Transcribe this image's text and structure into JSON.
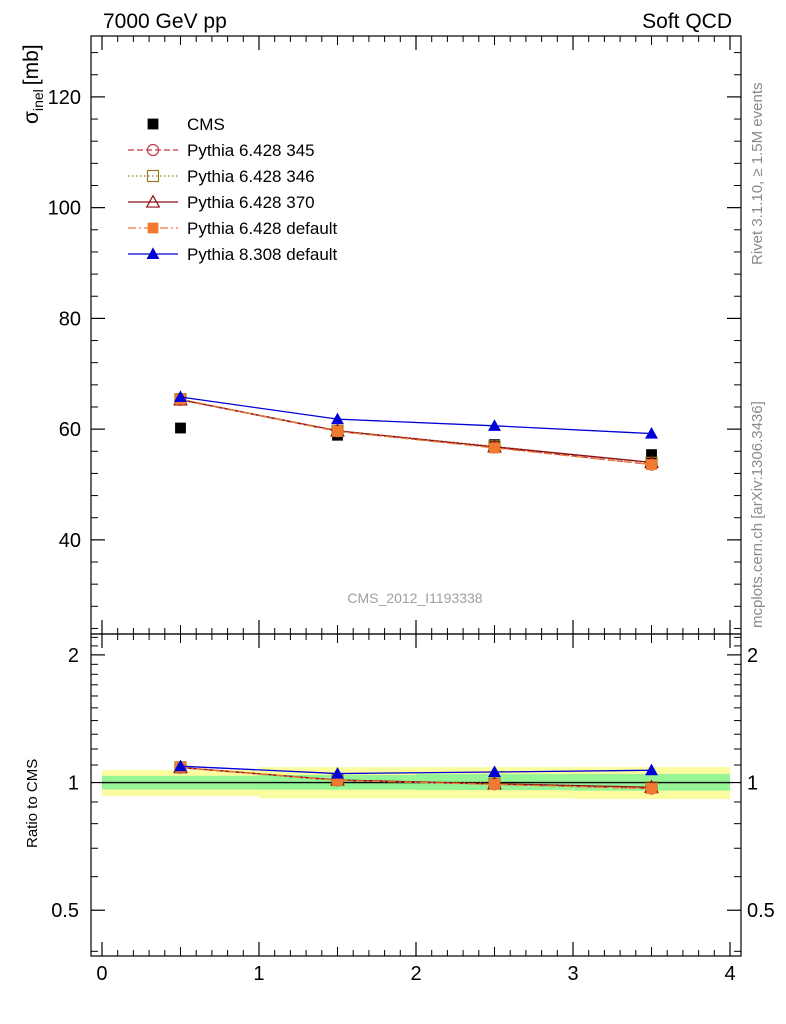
{
  "header": {
    "left": "7000 GeV pp",
    "right": "Soft QCD"
  },
  "side_labels": {
    "rivet": "Rivet 3.1.10, ≥ 1.5M events",
    "mcplots": "mcplots.cern.ch [arXiv:1306.3436]"
  },
  "analysis_id": "CMS_2012_I1193338",
  "chart_data": [
    {
      "type": "scatter",
      "panel": "main",
      "ylabel_main": "σ",
      "ylabel_sub": "inel",
      "ylabel_unit": "[mb]",
      "ylim": [
        23,
        131
      ],
      "xlim": [
        -0.07,
        4.07
      ],
      "y_ticks": [
        40,
        60,
        80,
        100,
        120
      ],
      "y_tick_labels": [
        "40",
        "60",
        "80",
        "100",
        "120"
      ],
      "x": [
        0.5,
        1.5,
        2.5,
        3.5
      ],
      "legend_position": "top-left",
      "series": [
        {
          "name": "CMS",
          "color": "#000000",
          "marker": "square-filled",
          "line": "none",
          "values": [
            60.2,
            58.9,
            57.2,
            55.4
          ]
        },
        {
          "name": "Pythia 6.428 345",
          "color": "#c0384b",
          "marker": "circle-open",
          "line": "dashed",
          "values": [
            65.3,
            59.6,
            56.7,
            53.6
          ]
        },
        {
          "name": "Pythia 6.428 346",
          "color": "#9a7b1f",
          "marker": "square-open",
          "line": "dotted",
          "values": [
            65.4,
            59.7,
            56.9,
            53.9
          ]
        },
        {
          "name": "Pythia 6.428 370",
          "color": "#8b0f17",
          "marker": "triangle-open",
          "line": "solid",
          "values": [
            65.3,
            59.7,
            56.8,
            54.0
          ]
        },
        {
          "name": "Pythia 6.428 default",
          "color": "#f07a30",
          "marker": "square-filled",
          "line": "dashdot",
          "values": [
            65.4,
            59.6,
            56.6,
            53.6
          ]
        },
        {
          "name": "Pythia 8.308 default",
          "color": "#0000d8",
          "marker": "triangle-filled",
          "line": "solid",
          "values": [
            65.8,
            61.8,
            60.6,
            59.2
          ]
        }
      ]
    },
    {
      "type": "scatter",
      "panel": "ratio",
      "ylabel": "Ratio to CMS",
      "ylim": [
        0.39,
        2.24
      ],
      "xlim": [
        -0.07,
        4.07
      ],
      "y_ticks": [
        0.5,
        1,
        2
      ],
      "y_tick_labels": [
        "0.5",
        "1",
        "2"
      ],
      "x_ticks": [
        0,
        1,
        2,
        3,
        4
      ],
      "x_tick_labels": [
        "0",
        "1",
        "2",
        "3",
        "4"
      ],
      "bands": {
        "bins": [
          [
            0,
            1
          ],
          [
            1,
            2
          ],
          [
            2,
            3
          ],
          [
            3,
            4
          ]
        ],
        "stat_lo": [
          0.963,
          0.962,
          0.96,
          0.957
        ],
        "stat_hi": [
          1.037,
          1.042,
          1.047,
          1.048
        ],
        "total_lo": [
          0.93,
          0.918,
          0.918,
          0.915
        ],
        "total_hi": [
          1.07,
          1.087,
          1.087,
          1.088
        ],
        "stat_color": "#95f595",
        "total_color": "#fbfb9f"
      },
      "x": [
        0.5,
        1.5,
        2.5,
        3.5
      ],
      "series": [
        {
          "name": "Pythia 6.428 345",
          "color": "#c0384b",
          "marker": "circle-open",
          "line": "dashed",
          "values": [
            1.084,
            1.012,
            0.991,
            0.968
          ]
        },
        {
          "name": "Pythia 6.428 346",
          "color": "#9a7b1f",
          "marker": "square-open",
          "line": "dotted",
          "values": [
            1.086,
            1.014,
            0.995,
            0.974
          ]
        },
        {
          "name": "Pythia 6.428 370",
          "color": "#8b0f17",
          "marker": "triangle-open",
          "line": "solid",
          "values": [
            1.085,
            1.014,
            0.993,
            0.975
          ]
        },
        {
          "name": "Pythia 6.428 default",
          "color": "#f07a30",
          "marker": "square-filled",
          "line": "dashdot",
          "values": [
            1.086,
            1.012,
            0.99,
            0.968
          ]
        },
        {
          "name": "Pythia 8.308 default",
          "color": "#0000d8",
          "marker": "triangle-filled",
          "line": "solid",
          "values": [
            1.093,
            1.05,
            1.059,
            1.069
          ]
        }
      ]
    }
  ]
}
